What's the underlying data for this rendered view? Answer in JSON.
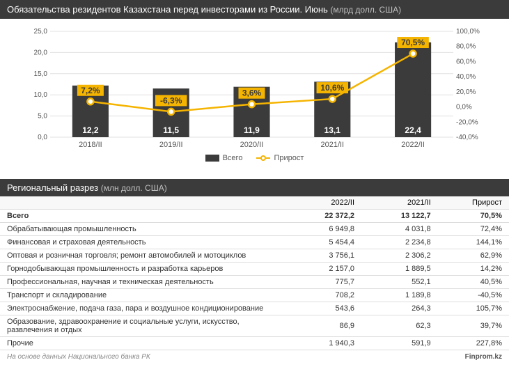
{
  "chart": {
    "title": "Обязательства резидентов Казахстана перед инвесторами из России. Июнь",
    "unit": "(млрд долл. США)",
    "type": "bar+line",
    "categories": [
      "2018/II",
      "2019/II",
      "2020/II",
      "2021/II",
      "2022/II"
    ],
    "bar_values": [
      12.2,
      11.5,
      11.9,
      13.1,
      22.4
    ],
    "bar_labels": [
      "12,2",
      "11,5",
      "11,9",
      "13,1",
      "22,4"
    ],
    "line_values": [
      7.2,
      -6.3,
      3.6,
      10.6,
      70.5
    ],
    "line_labels": [
      "7,2%",
      "-6,3%",
      "3,6%",
      "10,6%",
      "70,5%"
    ],
    "y_left_ticks": [
      0,
      5,
      10,
      15,
      20,
      25
    ],
    "y_left_labels": [
      "0,0",
      "5,0",
      "10,0",
      "15,0",
      "20,0",
      "25,0"
    ],
    "y_left_max": 25,
    "y_right_ticks": [
      -40,
      -20,
      0,
      20,
      40,
      60,
      80,
      100
    ],
    "y_right_labels": [
      "-40,0%",
      "-20,0%",
      "0,0%",
      "20,0%",
      "40,0%",
      "60,0%",
      "80,0%",
      "100,0%"
    ],
    "y_right_min": -40,
    "y_right_max": 100,
    "bar_color": "#3b3b3b",
    "line_color": "#f5b400",
    "legend_bar": "Всего",
    "legend_line": "Прирост"
  },
  "table": {
    "title": "Региональный разрез",
    "unit": "(млн долл. США)",
    "columns": [
      "",
      "2022/II",
      "2021/II",
      "Прирост"
    ],
    "total_row": [
      "Всего",
      "22 372,2",
      "13 122,7",
      "70,5%"
    ],
    "rows": [
      [
        "Обрабатывающая промышленность",
        "6 949,8",
        "4 031,8",
        "72,4%"
      ],
      [
        "Финансовая и страховая деятельность",
        "5 454,4",
        "2 234,8",
        "144,1%"
      ],
      [
        "Оптовая и розничная торговля; ремонт автомобилей и мотоциклов",
        "3 756,1",
        "2 306,2",
        "62,9%"
      ],
      [
        "Горнодобывающая промышленность и разработка карьеров",
        "2 157,0",
        "1 889,5",
        "14,2%"
      ],
      [
        "Профессиональная, научная и техническая деятельность",
        "775,7",
        "552,1",
        "40,5%"
      ],
      [
        "Транспорт и складирование",
        "708,2",
        "1 189,8",
        "-40,5%"
      ],
      [
        "Электроснабжение, подача газа, пара и воздушное кондиционирование",
        "543,6",
        "264,3",
        "105,7%"
      ],
      [
        "Образование, здравоохранение и социальные услуги, искусство, развлечения и отдых",
        "86,9",
        "62,3",
        "39,7%"
      ],
      [
        "Прочие",
        "1 940,3",
        "591,9",
        "227,8%"
      ]
    ]
  },
  "footer": {
    "source": "На основе данных Национального банка РК",
    "brand": "Finprom.kz"
  }
}
